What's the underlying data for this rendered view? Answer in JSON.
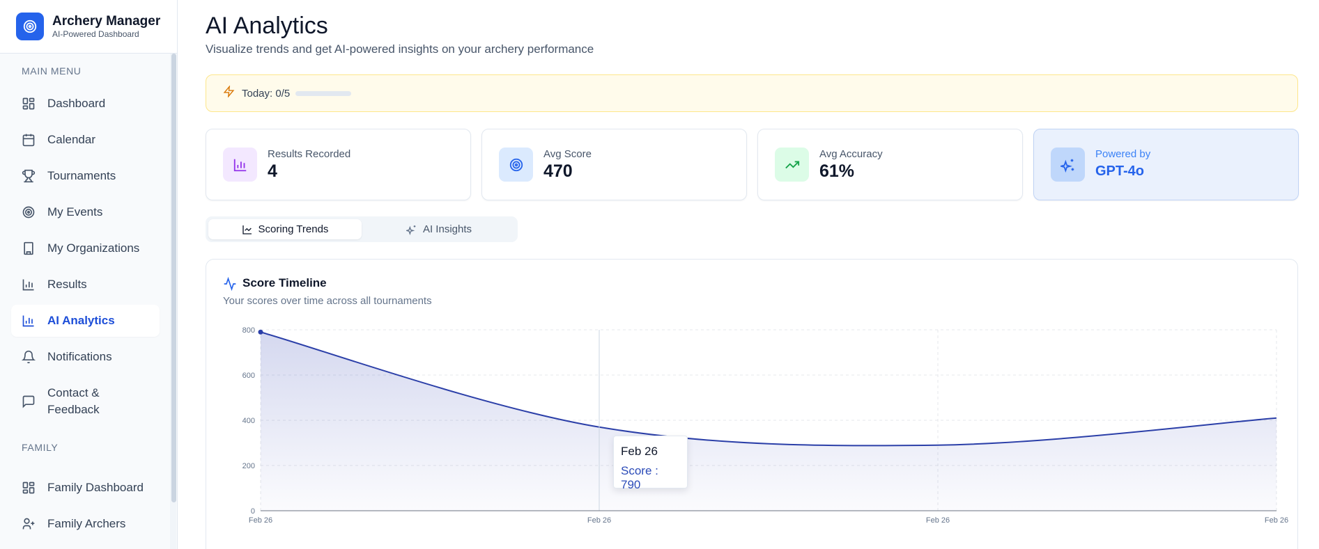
{
  "brand": {
    "title": "Archery Manager",
    "subtitle": "AI-Powered Dashboard"
  },
  "sidebar": {
    "main_menu_label": "MAIN MENU",
    "family_label": "FAMILY",
    "items": [
      {
        "label": "Dashboard",
        "icon": "dashboard-icon"
      },
      {
        "label": "Calendar",
        "icon": "calendar-icon"
      },
      {
        "label": "Tournaments",
        "icon": "trophy-icon"
      },
      {
        "label": "My Events",
        "icon": "target-icon"
      },
      {
        "label": "My Organizations",
        "icon": "building-icon"
      },
      {
        "label": "Results",
        "icon": "bar-chart-icon"
      },
      {
        "label": "AI Analytics",
        "icon": "bar-chart-icon",
        "active": true
      },
      {
        "label": "Notifications",
        "icon": "bell-icon"
      },
      {
        "label": "Contact &",
        "label2": "Feedback",
        "icon": "message-icon"
      }
    ],
    "family_items": [
      {
        "label": "Family Dashboard",
        "icon": "dashboard-icon"
      },
      {
        "label": "Family Archers",
        "icon": "user-plus-icon"
      }
    ]
  },
  "header": {
    "title": "AI Analytics",
    "subtitle": "Visualize trends and get AI-powered insights on your archery performance"
  },
  "usage": {
    "label": "Today: 0/5",
    "used": 0,
    "limit": 5
  },
  "stats": [
    {
      "label": "Results Recorded",
      "value": "4",
      "icon": "bar-chart-icon"
    },
    {
      "label": "Avg Score",
      "value": "470",
      "icon": "target-icon"
    },
    {
      "label": "Avg Accuracy",
      "value": "61%",
      "icon": "trending-up-icon"
    },
    {
      "label": "Powered by",
      "value": "GPT-4o",
      "icon": "sparkles-icon"
    }
  ],
  "tabs": [
    {
      "label": "Scoring Trends",
      "active": true
    },
    {
      "label": "AI Insights",
      "active": false
    }
  ],
  "chart": {
    "title": "Score Timeline",
    "subtitle": "Your scores over time across all tournaments",
    "tooltip": {
      "date": "Feb 26",
      "label": "Score : 790"
    }
  },
  "colors": {
    "accent": "#2563eb",
    "line": "#2b3fa8",
    "powered_bg": "#eaf1fd",
    "usage_bg": "#fffbeb"
  },
  "chart_data": {
    "type": "area",
    "title": "Score Timeline",
    "x": [
      "Feb 26",
      "Feb 26",
      "Feb 26",
      "Feb 26"
    ],
    "series": [
      {
        "values": [
          790,
          370,
          290,
          410
        ]
      }
    ],
    "ylim": [
      0,
      800
    ],
    "yticks": [
      0,
      200,
      400,
      600,
      800
    ],
    "grid": true
  }
}
